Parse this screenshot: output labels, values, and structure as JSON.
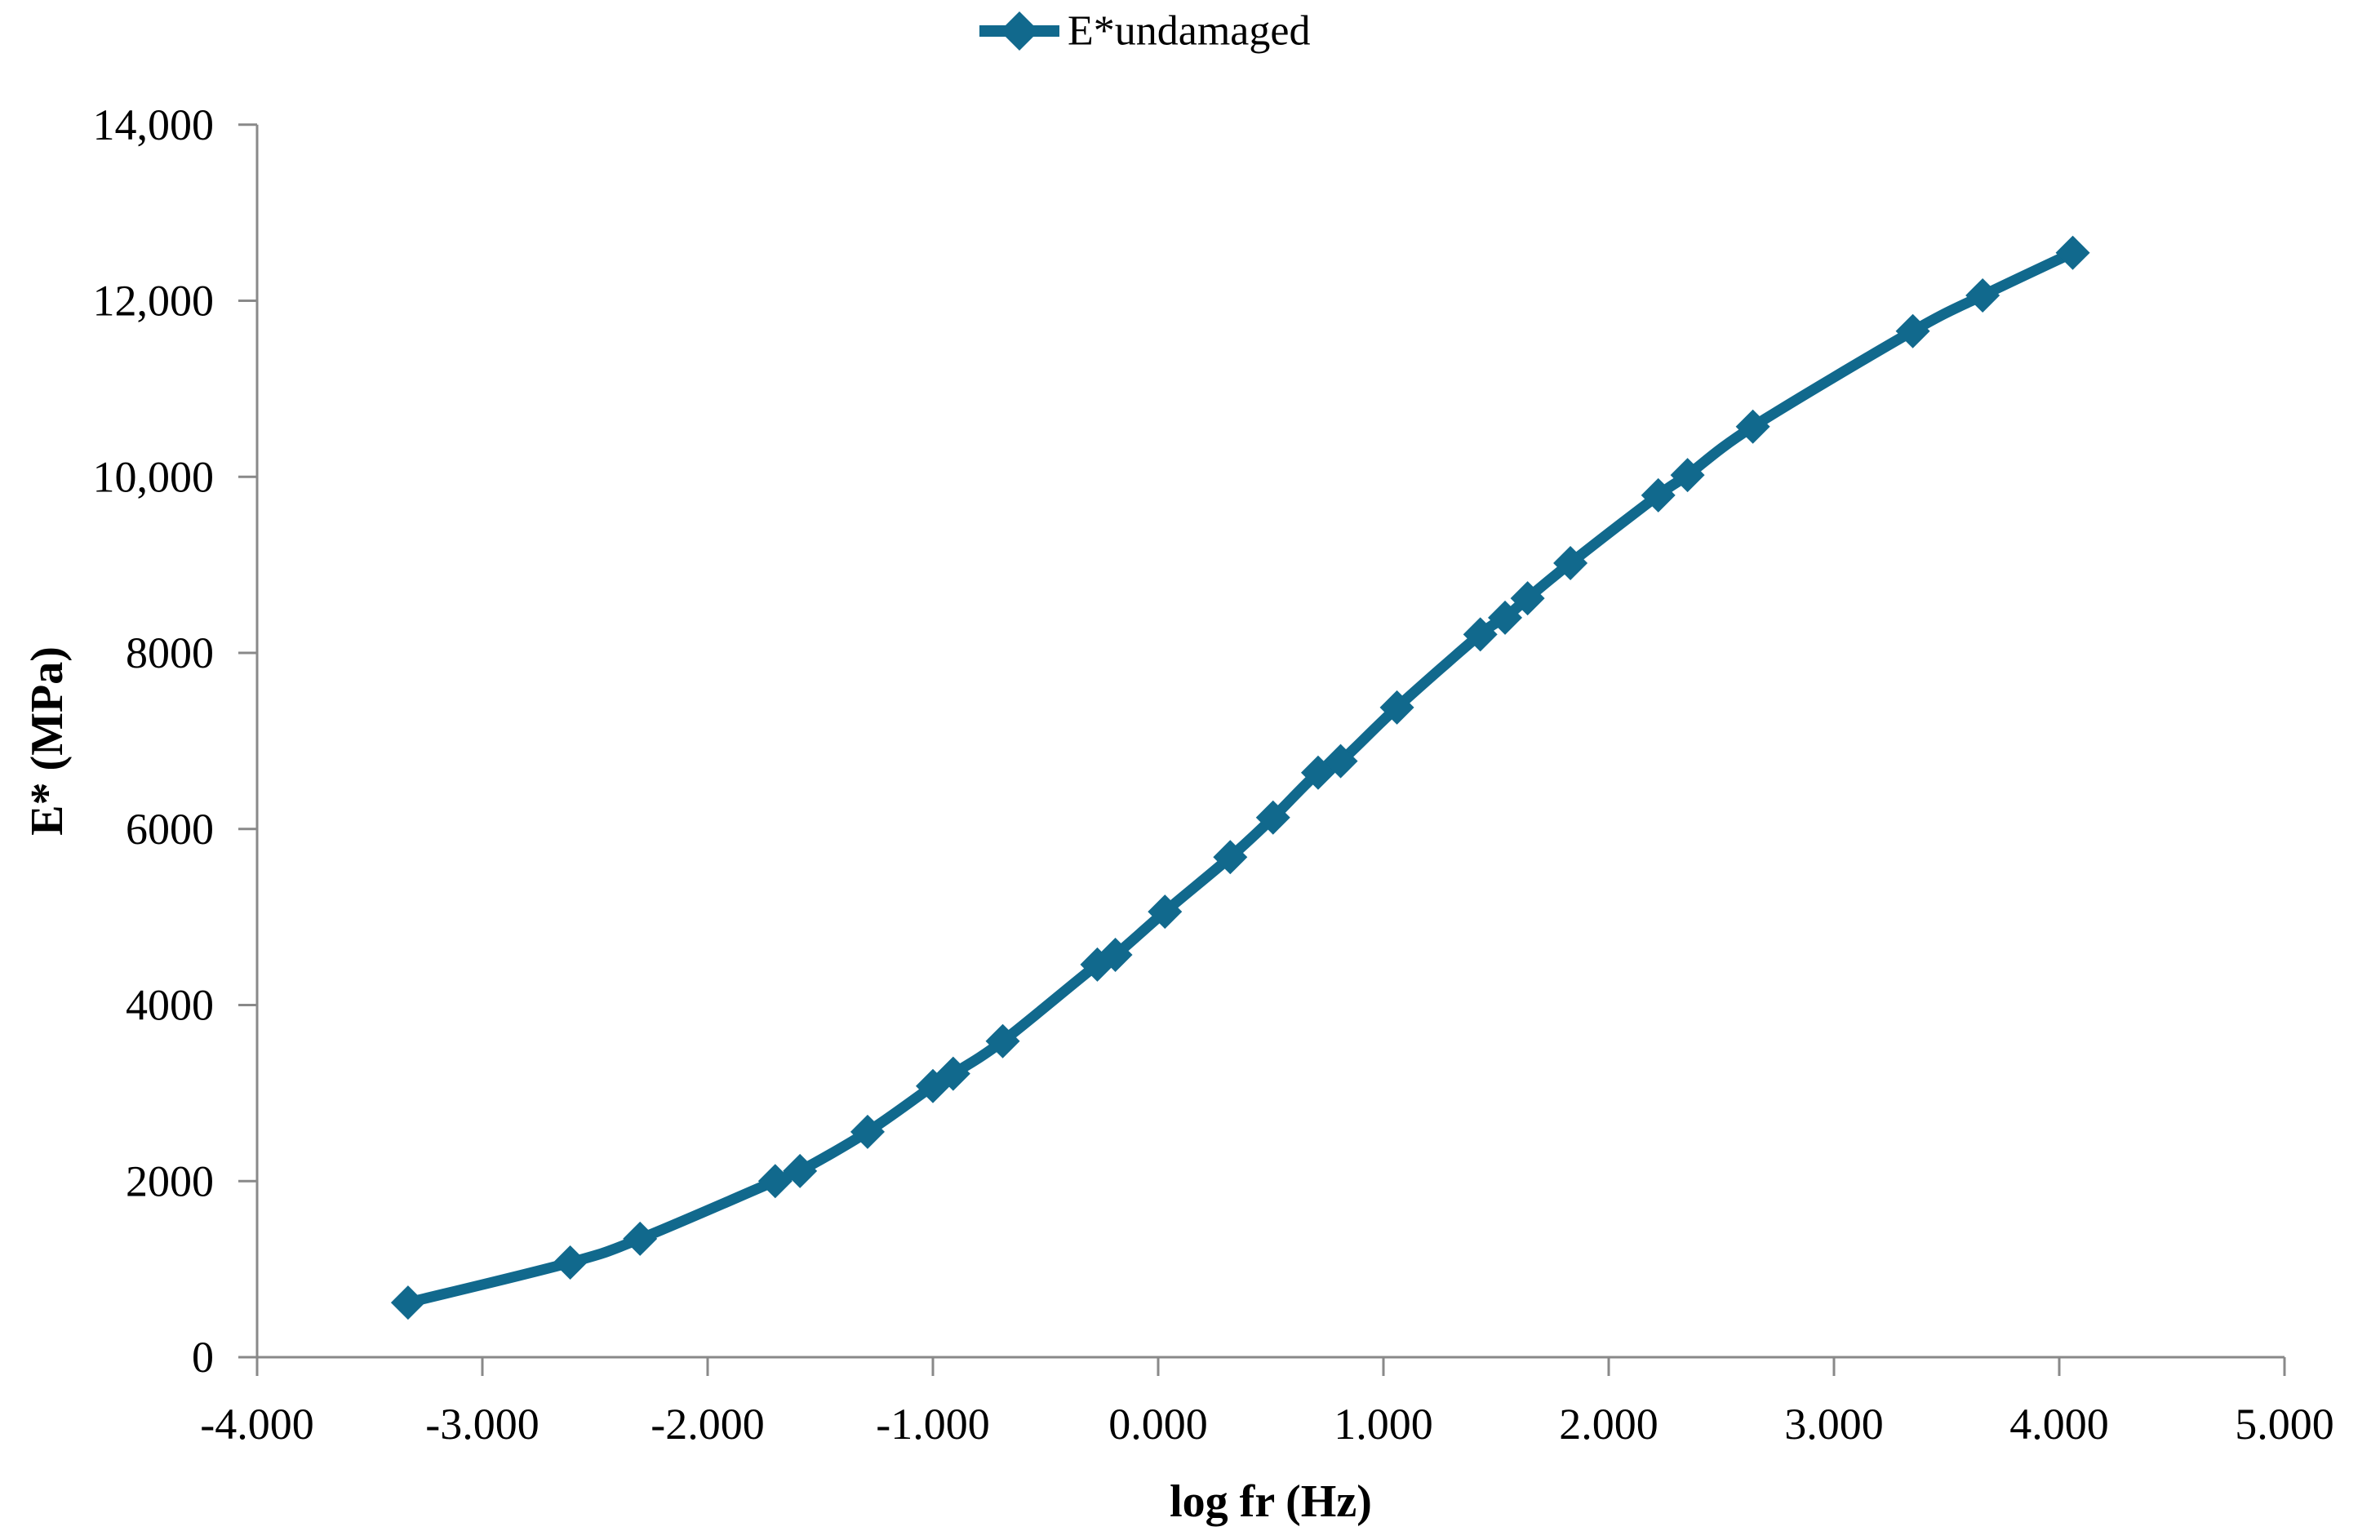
{
  "figure": {
    "legend": {
      "label": "E*undamaged",
      "position": "top-center"
    },
    "x_axis": {
      "title": "log fr (Hz)",
      "min": -4,
      "max": 5,
      "tick_step": 1,
      "tick_labels": [
        "-4.000",
        "-3.000",
        "-2.000",
        "-1.000",
        "0.000",
        "1.000",
        "2.000",
        "3.000",
        "4.000",
        "5.000"
      ]
    },
    "y_axis": {
      "title": "E* (MPa)",
      "min": 0,
      "max": 14000,
      "tick_step": 2000,
      "tick_labels": [
        "0",
        "2000",
        "4000",
        "6000",
        "8000",
        "10,000",
        "12,000",
        "14,000"
      ]
    },
    "colors": {
      "series": "#11698D",
      "axis": "#898989",
      "text": "#000000",
      "background": "#ffffff"
    }
  },
  "chart_data": {
    "type": "line",
    "title": "",
    "xlabel": "log fr (Hz)",
    "ylabel": "E* (MPa)",
    "xlim": [
      -4,
      5
    ],
    "ylim": [
      0,
      14000
    ],
    "x_ticks": [
      -4,
      -3,
      -2,
      -1,
      0,
      1,
      2,
      3,
      4,
      5
    ],
    "y_ticks": [
      0,
      2000,
      4000,
      6000,
      8000,
      10000,
      12000,
      14000
    ],
    "grid": false,
    "legend_position": "top-center",
    "marker": "diamond",
    "smooth": true,
    "series": [
      {
        "name": "E*undamaged",
        "color": "#11698D",
        "points": [
          [
            -3.33,
            620
          ],
          [
            -2.61,
            1075
          ],
          [
            -2.3,
            1345
          ],
          [
            -1.7,
            2000
          ],
          [
            -1.59,
            2115
          ],
          [
            -1.29,
            2560
          ],
          [
            -1.0,
            3080
          ],
          [
            -0.91,
            3220
          ],
          [
            -0.69,
            3590
          ],
          [
            -0.27,
            4460
          ],
          [
            -0.19,
            4570
          ],
          [
            0.03,
            5060
          ],
          [
            0.32,
            5680
          ],
          [
            0.51,
            6130
          ],
          [
            0.71,
            6640
          ],
          [
            0.81,
            6770
          ],
          [
            1.06,
            7380
          ],
          [
            1.43,
            8210
          ],
          [
            1.54,
            8400
          ],
          [
            1.64,
            8620
          ],
          [
            1.83,
            9020
          ],
          [
            2.22,
            9790
          ],
          [
            2.35,
            10020
          ],
          [
            2.64,
            10570
          ],
          [
            3.35,
            11655
          ],
          [
            3.66,
            12060
          ],
          [
            4.06,
            12545
          ]
        ]
      }
    ]
  }
}
